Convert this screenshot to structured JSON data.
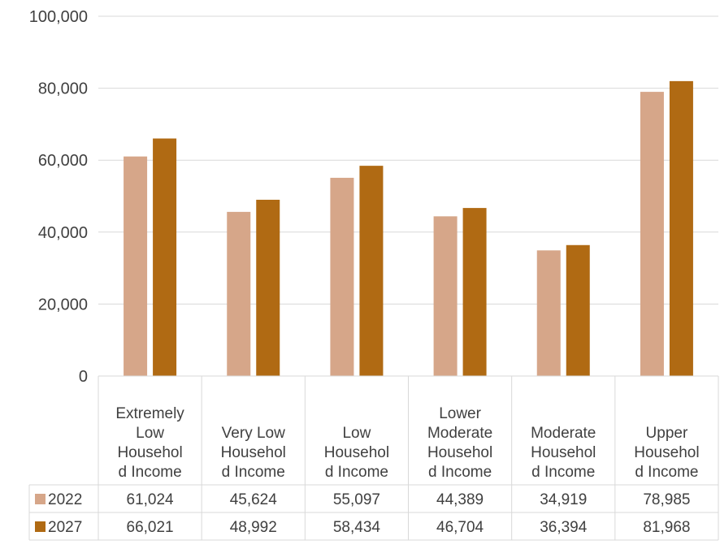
{
  "chart_data": {
    "type": "bar",
    "categories": [
      [
        "Extremely",
        "Low",
        "Househol",
        "d Income"
      ],
      [
        "Very Low",
        "Househol",
        "d Income"
      ],
      [
        "Low",
        "Househol",
        "d Income"
      ],
      [
        "Lower",
        "Moderate",
        "Househol",
        "d Income"
      ],
      [
        "Moderate",
        "Househol",
        "d Income"
      ],
      [
        "Upper",
        "Househol",
        "d Income"
      ]
    ],
    "series": [
      {
        "name": "2022",
        "color": "#d6a689",
        "values": [
          61024,
          45624,
          55097,
          44389,
          34919,
          78985
        ],
        "labels": [
          "61,024",
          "45,624",
          "55,097",
          "44,389",
          "34,919",
          "78,985"
        ]
      },
      {
        "name": "2027",
        "color": "#b06a13",
        "values": [
          66021,
          48992,
          58434,
          46704,
          36394,
          81968
        ],
        "labels": [
          "66,021",
          "48,992",
          "58,434",
          "46,704",
          "36,394",
          "81,968"
        ]
      }
    ],
    "ylim": [
      0,
      100000
    ],
    "yticks": [
      0,
      20000,
      40000,
      60000,
      80000,
      100000
    ],
    "ytick_labels": [
      "0",
      "20,000",
      "40,000",
      "60,000",
      "80,000",
      "100,000"
    ],
    "grid": true,
    "legend": "data-table",
    "title": "",
    "xlabel": "",
    "ylabel": ""
  }
}
